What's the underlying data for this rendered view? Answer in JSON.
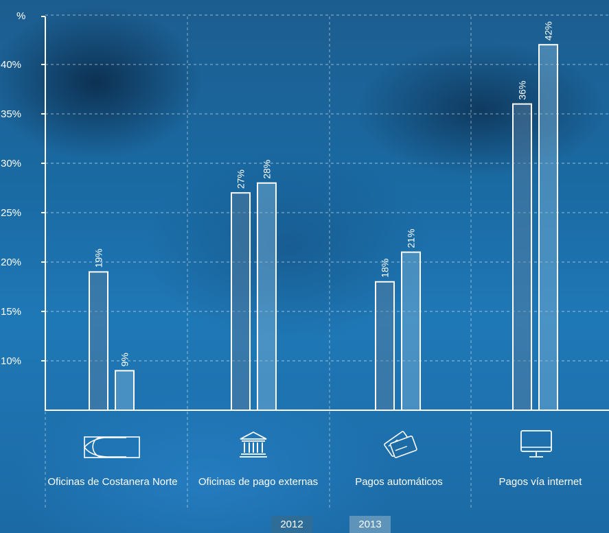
{
  "chart_data": {
    "type": "bar",
    "ylabel": "%",
    "yticks": [
      "10%",
      "15%",
      "20%",
      "25%",
      "30%",
      "35%",
      "40%"
    ],
    "ylim": [
      5,
      44
    ],
    "grid": true,
    "categories": [
      "Oficinas de Costanera Norte",
      "Oficinas de pago externas",
      "Pagos automáticos",
      "Pagos vía internet"
    ],
    "series": [
      {
        "name": "2012",
        "values": [
          19,
          27,
          18,
          36
        ],
        "labels": [
          "19%",
          "27%",
          "18%",
          "36%"
        ]
      },
      {
        "name": "2013",
        "values": [
          9,
          28,
          21,
          42
        ],
        "labels": [
          "9%",
          "28%",
          "21%",
          "42%"
        ]
      }
    ],
    "legend_position": "bottom"
  },
  "icons": [
    "costanera-norte-logo-icon",
    "bank-building-icon",
    "credit-cards-icon",
    "monitor-icon"
  ],
  "colors": {
    "series_2012": "#5a7f9f",
    "series_2013": "#7fb3d6",
    "bar_outline": "#ffffff"
  }
}
